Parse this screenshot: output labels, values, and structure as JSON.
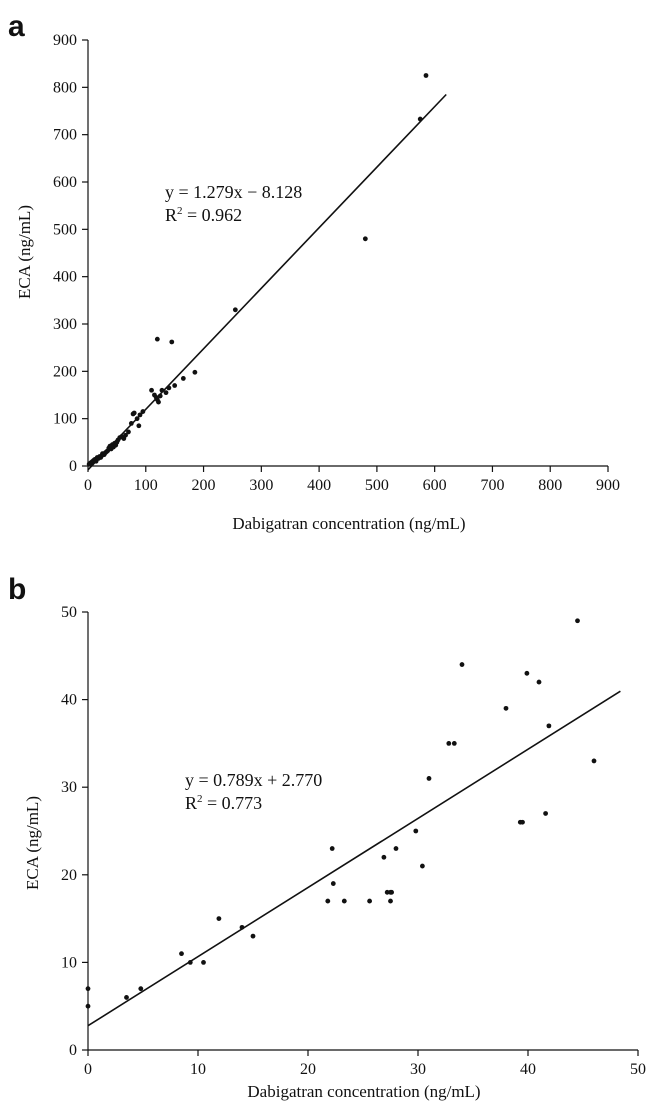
{
  "chart_data": [
    {
      "panel": "a",
      "type": "scatter",
      "title": "",
      "xlabel": "Dabigatran concentration (ng/mL)",
      "ylabel": "ECA (ng/mL)",
      "xlim": [
        0,
        900
      ],
      "ylim": [
        0,
        900
      ],
      "xticks": [
        "0",
        "100",
        "200",
        "300",
        "400",
        "500",
        "600",
        "700",
        "800",
        "900"
      ],
      "yticks": [
        "0",
        "100",
        "200",
        "300",
        "400",
        "500",
        "600",
        "700",
        "800",
        "900"
      ],
      "grid": false,
      "annotations": [
        "y = 1.279x − 8.128",
        "R2 = 0.962"
      ],
      "fit": {
        "slope": 1.279,
        "intercept": -8.128,
        "x_range": [
          0,
          620
        ]
      },
      "points": [
        [
          2,
          4
        ],
        [
          4,
          6
        ],
        [
          5,
          3
        ],
        [
          6,
          8
        ],
        [
          8,
          10
        ],
        [
          10,
          12
        ],
        [
          12,
          14
        ],
        [
          14,
          10
        ],
        [
          16,
          18
        ],
        [
          18,
          16
        ],
        [
          20,
          20
        ],
        [
          22,
          18
        ],
        [
          24,
          22
        ],
        [
          25,
          26
        ],
        [
          28,
          24
        ],
        [
          30,
          28
        ],
        [
          32,
          30
        ],
        [
          34,
          32
        ],
        [
          36,
          38
        ],
        [
          38,
          42
        ],
        [
          40,
          36
        ],
        [
          42,
          45
        ],
        [
          44,
          40
        ],
        [
          46,
          48
        ],
        [
          48,
          44
        ],
        [
          50,
          50
        ],
        [
          52,
          55
        ],
        [
          55,
          60
        ],
        [
          58,
          62
        ],
        [
          62,
          58
        ],
        [
          65,
          65
        ],
        [
          70,
          72
        ],
        [
          75,
          90
        ],
        [
          78,
          110
        ],
        [
          80,
          112
        ],
        [
          85,
          100
        ],
        [
          88,
          85
        ],
        [
          90,
          108
        ],
        [
          95,
          115
        ],
        [
          110,
          160
        ],
        [
          115,
          150
        ],
        [
          118,
          145
        ],
        [
          120,
          140
        ],
        [
          122,
          135
        ],
        [
          125,
          148
        ],
        [
          128,
          160
        ],
        [
          135,
          155
        ],
        [
          140,
          165
        ],
        [
          150,
          170
        ],
        [
          165,
          185
        ],
        [
          185,
          198
        ],
        [
          120,
          268
        ],
        [
          145,
          262
        ],
        [
          255,
          330
        ],
        [
          480,
          480
        ],
        [
          575,
          733
        ],
        [
          585,
          825
        ]
      ]
    },
    {
      "panel": "b",
      "type": "scatter",
      "title": "",
      "xlabel": "Dabigatran concentration (ng/mL)",
      "ylabel": "ECA (ng/mL)",
      "xlim": [
        0,
        50
      ],
      "ylim": [
        0,
        50
      ],
      "xticks": [
        "0",
        "10",
        "20",
        "30",
        "40",
        "50"
      ],
      "yticks": [
        "0",
        "10",
        "20",
        "30",
        "40",
        "50"
      ],
      "grid": false,
      "annotations": [
        "y = 0.789x + 2.770",
        "R2 = 0.773"
      ],
      "fit": {
        "slope": 0.789,
        "intercept": 2.77,
        "x_range": [
          0,
          48.4
        ]
      },
      "points": [
        [
          0,
          7
        ],
        [
          0,
          5
        ],
        [
          3.5,
          6
        ],
        [
          4.8,
          7
        ],
        [
          8.5,
          11
        ],
        [
          9.3,
          10
        ],
        [
          10.5,
          10
        ],
        [
          11.9,
          15
        ],
        [
          14,
          14
        ],
        [
          15,
          13
        ],
        [
          21.8,
          17
        ],
        [
          22.2,
          23
        ],
        [
          22.3,
          19
        ],
        [
          23.3,
          17
        ],
        [
          25.6,
          17
        ],
        [
          26.9,
          22
        ],
        [
          27.2,
          18
        ],
        [
          27.5,
          18
        ],
        [
          27.5,
          17
        ],
        [
          27.6,
          18
        ],
        [
          28,
          23
        ],
        [
          29.8,
          25
        ],
        [
          30.4,
          21
        ],
        [
          31,
          31
        ],
        [
          32.8,
          35
        ],
        [
          33.3,
          35
        ],
        [
          34,
          44
        ],
        [
          38,
          39
        ],
        [
          39.3,
          26
        ],
        [
          39.5,
          26
        ],
        [
          39.9,
          43
        ],
        [
          41,
          42
        ],
        [
          41.6,
          27
        ],
        [
          41.9,
          37
        ],
        [
          44.5,
          49
        ],
        [
          46,
          33
        ]
      ]
    }
  ],
  "panels": [
    {
      "letter": "a",
      "eq_line1": "y = 1.279x − 8.128",
      "eq_r_prefix": "R",
      "eq_r_sup": "2",
      "eq_r_value": " = 0.962"
    },
    {
      "letter": "b",
      "eq_line1": "y = 0.789x + 2.770",
      "eq_r_prefix": "R",
      "eq_r_sup": "2",
      "eq_r_value": " = 0.773"
    }
  ],
  "colors": {
    "axis": "#111111",
    "marker": "#111111",
    "line": "#111111",
    "background": "#ffffff"
  }
}
